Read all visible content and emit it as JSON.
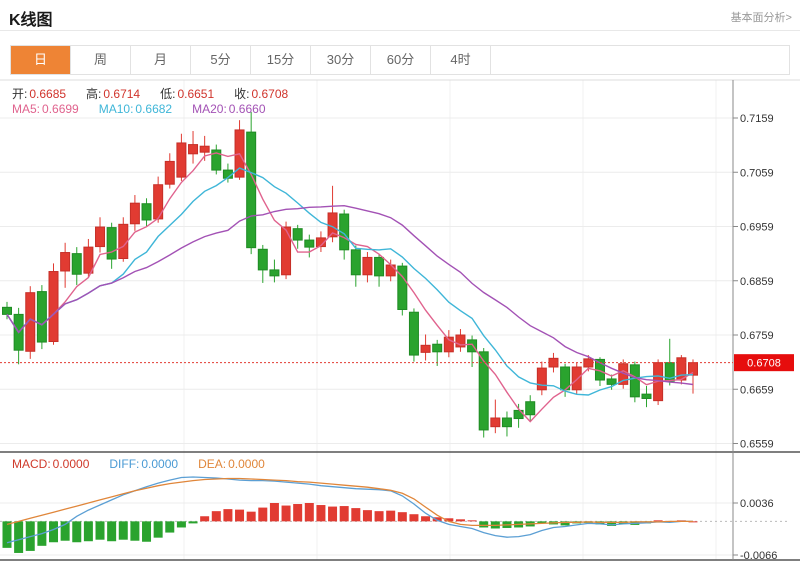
{
  "header": {
    "title": "K线图",
    "link": "基本面分析>"
  },
  "tabs": [
    {
      "label": "日",
      "active": true
    },
    {
      "label": "周",
      "active": false
    },
    {
      "label": "月",
      "active": false
    },
    {
      "label": "5分",
      "active": false
    },
    {
      "label": "15分",
      "active": false
    },
    {
      "label": "30分",
      "active": false
    },
    {
      "label": "60分",
      "active": false
    },
    {
      "label": "4时",
      "active": false
    }
  ],
  "legend_ohlc": [
    {
      "label": "开:",
      "value": "0.6685"
    },
    {
      "label": "高:",
      "value": "0.6714"
    },
    {
      "label": "低:",
      "value": "0.6651"
    },
    {
      "label": "收:",
      "value": "0.6708"
    }
  ],
  "legend_ma": [
    {
      "label": "MA5:",
      "value": "0.6699",
      "color": "#e0638e"
    },
    {
      "label": "MA10:",
      "value": "0.6682",
      "color": "#3fb6d8"
    },
    {
      "label": "MA20:",
      "value": "0.6660",
      "color": "#a352b5"
    }
  ],
  "legend_macd": [
    {
      "label": "MACD:",
      "value": "0.0000",
      "color": "#cf3a2b"
    },
    {
      "label": "DIFF:",
      "value": "0.0000",
      "color": "#4a9ad4"
    },
    {
      "label": "DEA:",
      "value": "0.0000",
      "color": "#e0863a"
    }
  ],
  "colors": {
    "up": "#e13b32",
    "up_stroke": "#c62f28",
    "down": "#2aa32e",
    "down_stroke": "#1f8b24",
    "ma5": "#d45f8a",
    "ma10": "#52b7d3",
    "ma20": "#aa5fb0",
    "diff": "#5b9fd4",
    "dea": "#e0863a",
    "grid": "#ececec",
    "vgrid": "#f0f0f0",
    "axis": "#888",
    "panel_border": "#555",
    "tick_text": "#333",
    "price_line": "#e23b32",
    "price_badge": "#e60d0d",
    "price_badge_text": "#ffffff",
    "tab_active_bg": "#ee8435"
  },
  "chart_data": {
    "type": "candlestick+macd",
    "legend_position": "top-left",
    "grid": true,
    "x_labels_visible": false,
    "main_panel": {
      "y_tick_labels": [
        "0.7159",
        "0.7059",
        "0.6959",
        "0.6859",
        "0.6759",
        "0.6659",
        "0.6559"
      ],
      "y_ticks": [
        0.7159,
        0.7059,
        0.6959,
        0.6859,
        0.6759,
        0.6659,
        0.6559
      ],
      "ylim": [
        0.6547,
        0.7173
      ],
      "current_price": 0.6708,
      "current_price_label": "0.6708",
      "ma_periods": [
        5,
        10,
        20
      ],
      "candles_ohlc": [
        [
          0.681,
          0.682,
          0.6788,
          0.6797
        ],
        [
          0.6797,
          0.6809,
          0.6705,
          0.6731
        ],
        [
          0.6729,
          0.6849,
          0.6715,
          0.6837
        ],
        [
          0.6839,
          0.6851,
          0.6733,
          0.6746
        ],
        [
          0.6747,
          0.6891,
          0.6741,
          0.6876
        ],
        [
          0.6877,
          0.6929,
          0.6846,
          0.6911
        ],
        [
          0.6909,
          0.6921,
          0.6851,
          0.6871
        ],
        [
          0.6873,
          0.6936,
          0.6866,
          0.6921
        ],
        [
          0.6922,
          0.6976,
          0.6911,
          0.6958
        ],
        [
          0.6957,
          0.6966,
          0.6881,
          0.6899
        ],
        [
          0.69,
          0.6976,
          0.6894,
          0.6963
        ],
        [
          0.6964,
          0.7017,
          0.6951,
          0.7002
        ],
        [
          0.7001,
          0.7011,
          0.6959,
          0.6971
        ],
        [
          0.6973,
          0.7051,
          0.6966,
          0.7036
        ],
        [
          0.7037,
          0.7094,
          0.7029,
          0.7079
        ],
        [
          0.705,
          0.713,
          0.7043,
          0.7113
        ],
        [
          0.7093,
          0.7135,
          0.7075,
          0.711
        ],
        [
          0.7096,
          0.7126,
          0.708,
          0.7107
        ],
        [
          0.71,
          0.711,
          0.7055,
          0.7063
        ],
        [
          0.7063,
          0.7075,
          0.704,
          0.7048
        ],
        [
          0.705,
          0.7155,
          0.7045,
          0.7137
        ],
        [
          0.7133,
          0.717,
          0.6908,
          0.692
        ],
        [
          0.6917,
          0.6925,
          0.6855,
          0.6879
        ],
        [
          0.6879,
          0.6898,
          0.6856,
          0.6868
        ],
        [
          0.687,
          0.6968,
          0.6862,
          0.6958
        ],
        [
          0.6955,
          0.6962,
          0.6918,
          0.6934
        ],
        [
          0.6934,
          0.6944,
          0.6902,
          0.6921
        ],
        [
          0.6922,
          0.695,
          0.6912,
          0.6938
        ],
        [
          0.694,
          0.7034,
          0.693,
          0.6984
        ],
        [
          0.6982,
          0.699,
          0.6898,
          0.6916
        ],
        [
          0.6916,
          0.6924,
          0.6848,
          0.687
        ],
        [
          0.687,
          0.6912,
          0.6856,
          0.6902
        ],
        [
          0.6902,
          0.6908,
          0.6848,
          0.6868
        ],
        [
          0.6868,
          0.6898,
          0.6858,
          0.6888
        ],
        [
          0.6886,
          0.6892,
          0.6795,
          0.6806
        ],
        [
          0.6801,
          0.6808,
          0.671,
          0.6722
        ],
        [
          0.6727,
          0.676,
          0.6712,
          0.674
        ],
        [
          0.6742,
          0.675,
          0.6702,
          0.6728
        ],
        [
          0.6728,
          0.6768,
          0.6718,
          0.6755
        ],
        [
          0.6737,
          0.677,
          0.6728,
          0.6759
        ],
        [
          0.675,
          0.6758,
          0.67,
          0.6728
        ],
        [
          0.6728,
          0.6735,
          0.657,
          0.6584
        ],
        [
          0.659,
          0.664,
          0.6578,
          0.6606
        ],
        [
          0.6606,
          0.6618,
          0.6572,
          0.659
        ],
        [
          0.662,
          0.6632,
          0.6588,
          0.6605
        ],
        [
          0.6636,
          0.6648,
          0.66,
          0.6612
        ],
        [
          0.6658,
          0.671,
          0.6648,
          0.6698
        ],
        [
          0.67,
          0.6726,
          0.669,
          0.6716
        ],
        [
          0.67,
          0.6706,
          0.6645,
          0.6658
        ],
        [
          0.6658,
          0.6708,
          0.665,
          0.67
        ],
        [
          0.67,
          0.6722,
          0.6692,
          0.6715
        ],
        [
          0.6714,
          0.6718,
          0.6665,
          0.6676
        ],
        [
          0.6678,
          0.6686,
          0.6658,
          0.6668
        ],
        [
          0.6668,
          0.6714,
          0.666,
          0.6706
        ],
        [
          0.6704,
          0.671,
          0.6635,
          0.6645
        ],
        [
          0.665,
          0.6665,
          0.6626,
          0.6642
        ],
        [
          0.6638,
          0.6714,
          0.663,
          0.6708
        ],
        [
          0.6708,
          0.6752,
          0.6666,
          0.6674
        ],
        [
          0.6676,
          0.6722,
          0.6668,
          0.6717
        ],
        [
          0.6685,
          0.6714,
          0.6651,
          0.6708
        ]
      ]
    },
    "macd_panel": {
      "y_tick_labels": [
        "0.0036",
        "-0.0066"
      ],
      "y_ticks": [
        0.0036,
        -0.0066
      ],
      "ylim": [
        -0.0076,
        0.0136
      ],
      "histogram": [
        -0.0052,
        -0.0062,
        -0.0058,
        -0.0048,
        -0.0041,
        -0.0038,
        -0.0041,
        -0.0039,
        -0.0036,
        -0.0039,
        -0.0036,
        -0.0038,
        -0.004,
        -0.0032,
        -0.0022,
        -0.0012,
        -0.0004,
        0.001,
        0.002,
        0.0024,
        0.0023,
        0.0019,
        0.0027,
        0.0036,
        0.0031,
        0.0034,
        0.0036,
        0.0032,
        0.0029,
        0.003,
        0.0026,
        0.0022,
        0.002,
        0.0021,
        0.0018,
        0.0014,
        0.001,
        0.0008,
        0.0006,
        0.0004,
        0.0002,
        -0.0012,
        -0.0014,
        -0.0013,
        -0.0012,
        -0.001,
        -0.0004,
        -0.0006,
        -0.0008,
        -0.0004,
        -0.0003,
        -0.0006,
        -0.0009,
        -0.0005,
        -0.0007,
        -0.0004,
        0.0002,
        -0.0002,
        0.0002,
        0.0
      ],
      "diff": [
        -0.0042,
        -0.0036,
        -0.003,
        -0.0024,
        -0.0016,
        -0.0006,
        0.001,
        0.0022,
        0.0032,
        0.0042,
        0.0052,
        0.006,
        0.0068,
        0.0075,
        0.0081,
        0.0086,
        0.0087,
        0.0086,
        0.0085,
        0.0083,
        0.0081,
        0.008,
        0.008,
        0.0079,
        0.0077,
        0.0075,
        0.0073,
        0.007,
        0.0068,
        0.0066,
        0.0064,
        0.0063,
        0.0062,
        0.006,
        0.005,
        0.0034,
        0.0016,
        0.0002,
        -0.0006,
        -0.001,
        -0.0014,
        -0.0022,
        -0.0028,
        -0.0031,
        -0.003,
        -0.0026,
        -0.0018,
        -0.0012,
        -0.001,
        -0.0007,
        -0.0004,
        -0.0005,
        -0.0007,
        -0.0005,
        -0.0004,
        -0.0003,
        -0.0001,
        -0.0002,
        0.0,
        0.0
      ],
      "dea": [
        -0.0006,
        0.0,
        0.0006,
        0.0012,
        0.0018,
        0.0024,
        0.003,
        0.0036,
        0.0042,
        0.0048,
        0.0054,
        0.006,
        0.0065,
        0.007,
        0.0074,
        0.0077,
        0.008,
        0.0082,
        0.0083,
        0.0084,
        0.0084,
        0.0083,
        0.0082,
        0.0081,
        0.008,
        0.0078,
        0.0077,
        0.0075,
        0.0073,
        0.0071,
        0.0069,
        0.0067,
        0.0064,
        0.0061,
        0.0055,
        0.0044,
        0.0028,
        0.0012,
        0.0,
        -0.0006,
        -0.0008,
        -0.0008,
        -0.0008,
        -0.0007,
        -0.0006,
        -0.0005,
        -0.0004,
        -0.0003,
        -0.0002,
        -0.0002,
        -0.0001,
        -0.0002,
        -0.0002,
        -0.0002,
        -0.0001,
        -0.0001,
        -0.0001,
        0.0,
        0.0,
        0.0
      ]
    }
  }
}
